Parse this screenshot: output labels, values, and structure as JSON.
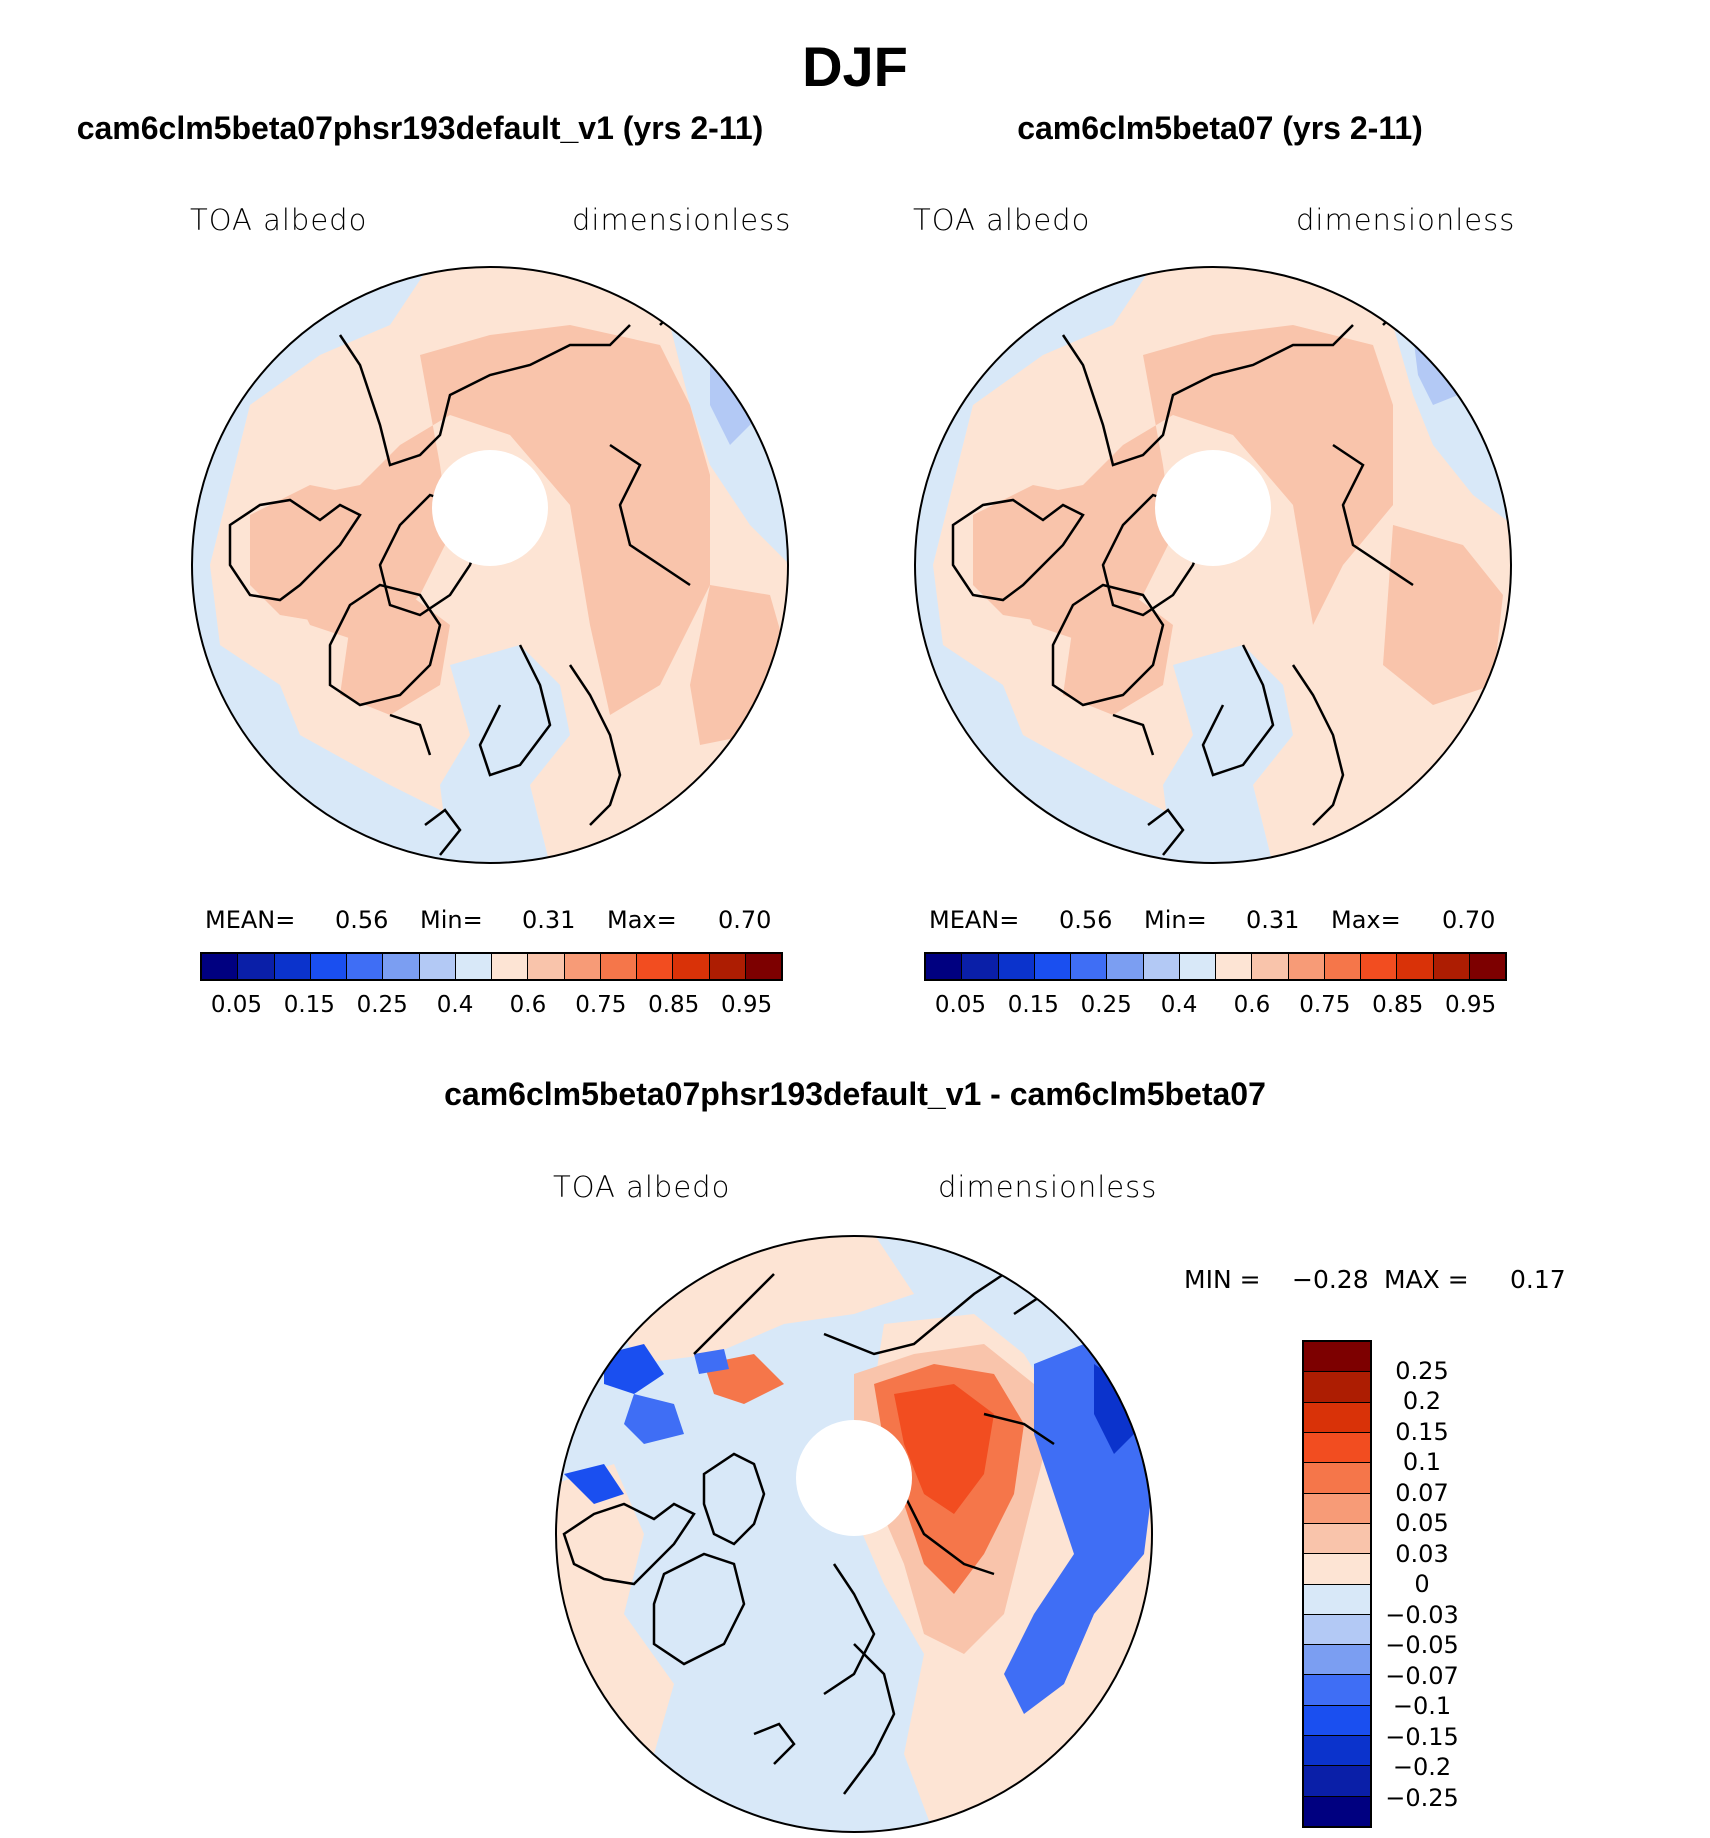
{
  "figure_title": "DJF",
  "panels": [
    {
      "id": "case",
      "title": "cam6clm5beta07phsr193default_v1 (yrs 2-11)",
      "variable": "TOA albedo",
      "units": "dimensionless",
      "stats": {
        "mean_label": "MEAN=",
        "mean": "0.56",
        "min_label": "Min=",
        "min": "0.31",
        "max_label": "Max=",
        "max": "0.70"
      }
    },
    {
      "id": "control",
      "title": "cam6clm5beta07 (yrs 2-11)",
      "variable": "TOA albedo",
      "units": "dimensionless",
      "stats": {
        "mean_label": "MEAN=",
        "mean": "0.56",
        "min_label": "Min=",
        "min": "0.31",
        "max_label": "Max=",
        "max": "0.70"
      }
    },
    {
      "id": "difference",
      "title": "cam6clm5beta07phsr193default_v1 - cam6clm5beta07",
      "variable": "TOA albedo",
      "units": "dimensionless",
      "stats": {
        "min_label": "MIN =",
        "min": "−0.28",
        "max_label": "MAX =",
        "max": "0.17"
      }
    }
  ],
  "colorbar_abs": {
    "colors": [
      "#000080",
      "#0a1fa8",
      "#0b33cc",
      "#1a4ff0",
      "#3f6ef5",
      "#7b9ef2",
      "#b3c9f5",
      "#d8e8f8",
      "#fde4d4",
      "#f9c4ab",
      "#f79b77",
      "#f5764a",
      "#f24d20",
      "#d93208",
      "#ad1d02",
      "#7d0000"
    ],
    "labels": [
      "0.05",
      "0.15",
      "0.25",
      "0.4",
      "0.6",
      "0.75",
      "0.85",
      "0.95"
    ]
  },
  "colorbar_diff": {
    "colors": [
      "#7d0000",
      "#ad1d02",
      "#d93208",
      "#f24d20",
      "#f5764a",
      "#f79b77",
      "#f9c4ab",
      "#fde4d4",
      "#d8e8f8",
      "#b3c9f5",
      "#7b9ef2",
      "#3f6ef5",
      "#1a4ff0",
      "#0b33cc",
      "#0a1fa8",
      "#000080"
    ],
    "labels": [
      "0.25",
      "0.2",
      "0.15",
      "0.1",
      "0.07",
      "0.05",
      "0.03",
      "0",
      "−0.03",
      "−0.05",
      "−0.07",
      "−0.1",
      "−0.15",
      "−0.2",
      "−0.25"
    ]
  },
  "colors": {
    "light_blue": "#d8e8f8",
    "light_peach": "#fde4d4",
    "peach": "#f9c4ab",
    "salmon": "#f79b77",
    "red": "#f24d20",
    "blue": "#1a4ff0",
    "mid_blue": "#7b9ef2"
  }
}
